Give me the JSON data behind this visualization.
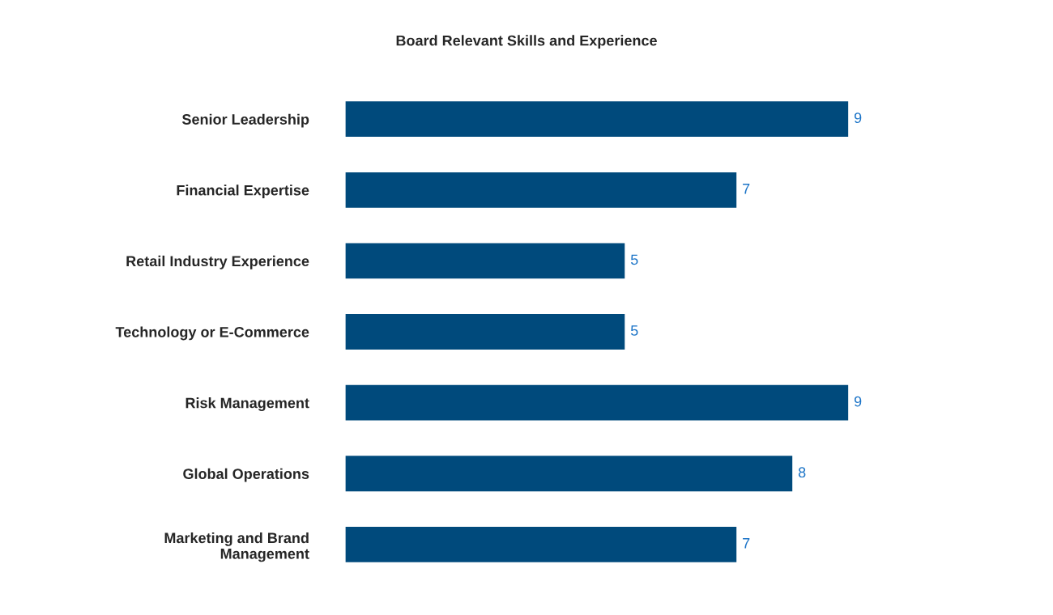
{
  "chart_data": {
    "type": "bar",
    "orientation": "horizontal",
    "title": "Board Relevant Skills and Experience",
    "categories": [
      "Senior Leadership",
      "Financial Expertise",
      "Retail Industry Experience",
      "Technology or E-Commerce",
      "Risk Management",
      "Global Operations",
      "Marketing and Brand\nManagement"
    ],
    "values": [
      9,
      7,
      5,
      5,
      9,
      8,
      7
    ],
    "color": "#004a7c",
    "data_labels": true,
    "grid": false,
    "legend": false,
    "tick_labels": "y"
  }
}
